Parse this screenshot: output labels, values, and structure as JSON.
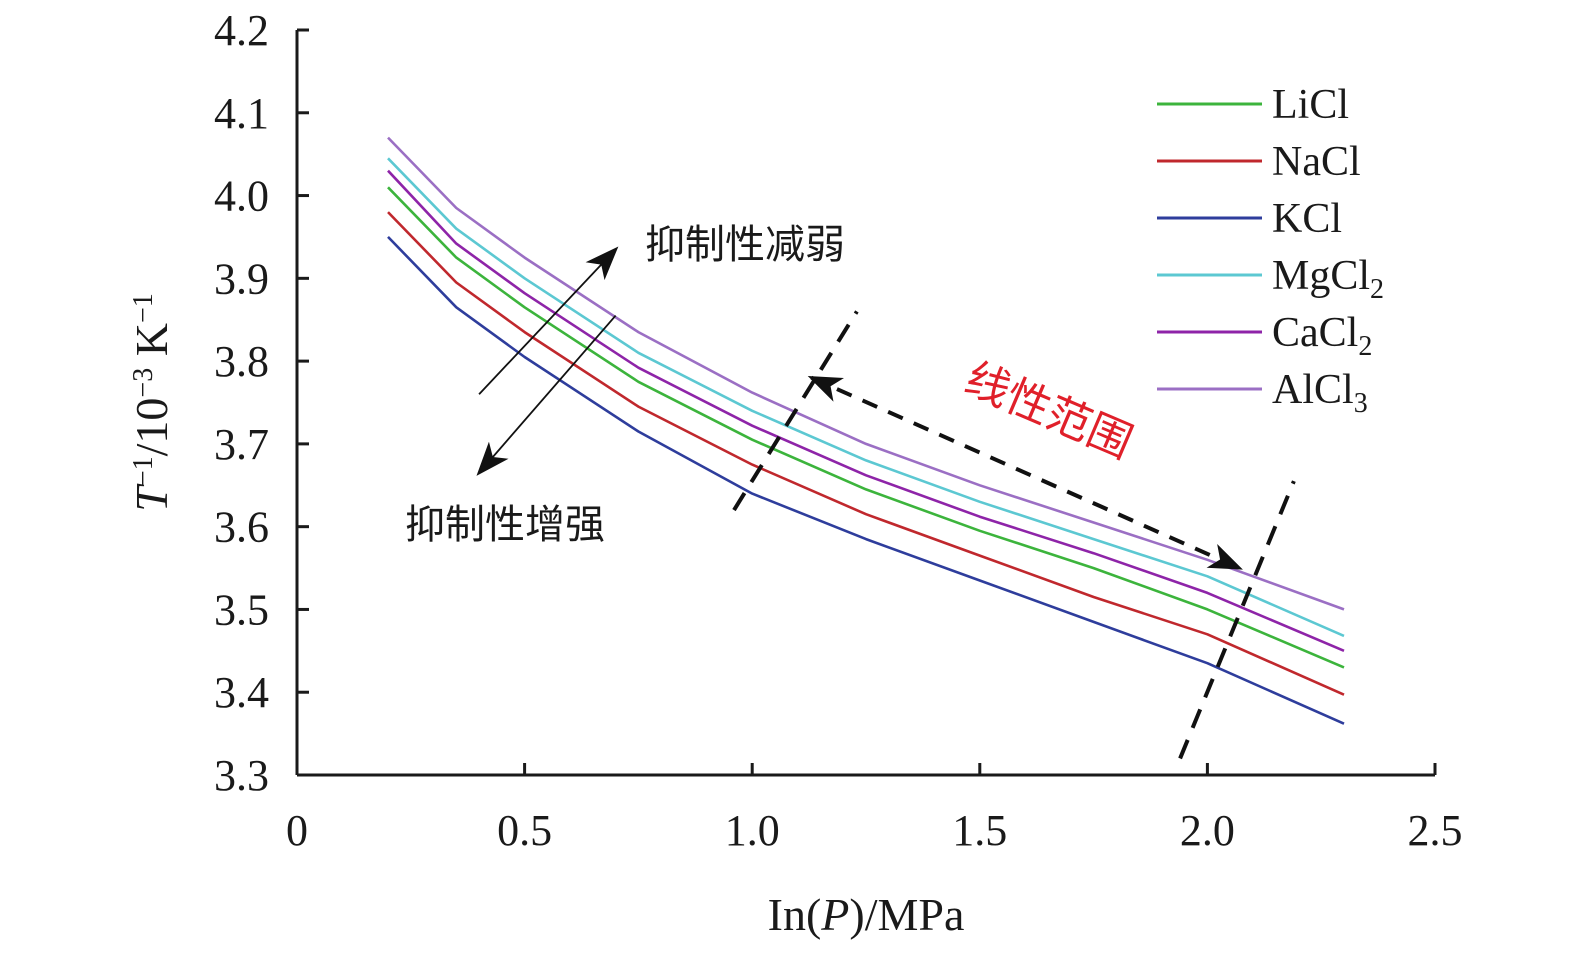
{
  "chart_data": {
    "type": "line",
    "xlabel": {
      "main": "In(",
      "italic": "P",
      "rest": ")/MPa"
    },
    "ylabel": {
      "italic": "T",
      "sup1": "−1",
      "mid": "/10",
      "sup2": "−3",
      "unit": " K",
      "sup3": "−1"
    },
    "xlim": [
      0,
      2.5
    ],
    "ylim": [
      3.3,
      4.2
    ],
    "x_ticks": [
      0,
      0.5,
      1.0,
      1.5,
      2.0,
      2.5
    ],
    "x_tick_labels": [
      "0",
      "0.5",
      "1.0",
      "1.5",
      "2.0",
      "2.5"
    ],
    "y_ticks": [
      3.3,
      3.4,
      3.5,
      3.6,
      3.7,
      3.8,
      3.9,
      4.0,
      4.1,
      4.2
    ],
    "y_tick_labels": [
      "3.3",
      "3.4",
      "3.5",
      "3.6",
      "3.7",
      "3.8",
      "3.9",
      "4.0",
      "4.1",
      "4.2"
    ],
    "grid": false,
    "legend_position": "top-right",
    "x": [
      0.2,
      0.35,
      0.5,
      0.75,
      1.0,
      1.25,
      1.5,
      1.75,
      2.0,
      2.3
    ],
    "series": [
      {
        "name": "LiCl",
        "label_main": "LiCl",
        "label_sub": "",
        "color": "#3cb43c",
        "values": [
          4.01,
          3.925,
          3.865,
          3.775,
          3.705,
          3.645,
          3.595,
          3.55,
          3.5,
          3.43
        ]
      },
      {
        "name": "NaCl",
        "label_main": "NaCl",
        "label_sub": "",
        "color": "#c0282d",
        "values": [
          3.98,
          3.895,
          3.835,
          3.745,
          3.675,
          3.615,
          3.565,
          3.515,
          3.47,
          3.397
        ]
      },
      {
        "name": "KCl",
        "label_main": "KCl",
        "label_sub": "",
        "color": "#2e3d9c",
        "values": [
          3.95,
          3.865,
          3.805,
          3.715,
          3.64,
          3.585,
          3.535,
          3.485,
          3.435,
          3.362
        ]
      },
      {
        "name": "MgCl2",
        "label_main": "MgCl",
        "label_sub": "2",
        "color": "#5cc8d2",
        "values": [
          4.045,
          3.96,
          3.9,
          3.81,
          3.74,
          3.68,
          3.63,
          3.585,
          3.54,
          3.468
        ]
      },
      {
        "name": "CaCl2",
        "label_main": "CaCl",
        "label_sub": "2",
        "color": "#8e24a8",
        "values": [
          4.03,
          3.942,
          3.882,
          3.792,
          3.722,
          3.662,
          3.612,
          3.568,
          3.52,
          3.45
        ]
      },
      {
        "name": "AlCl3",
        "label_main": "AlCl",
        "label_sub": "3",
        "color": "#9b6fc4",
        "values": [
          4.07,
          3.985,
          3.925,
          3.835,
          3.762,
          3.7,
          3.65,
          3.605,
          3.56,
          3.5
        ]
      }
    ],
    "annotations": {
      "weaken": {
        "text": "抑制性减弱",
        "arrow_from": [
          0.4,
          3.76
        ],
        "arrow_to": [
          0.7,
          3.935
        ]
      },
      "strengthen": {
        "text": "抑制性增强",
        "arrow_from": [
          0.7,
          3.855
        ],
        "arrow_to": [
          0.4,
          3.665
        ]
      },
      "linear_range": {
        "text": "线性范围",
        "color": "#e0202a",
        "arrow_from": [
          1.13,
          3.78
        ],
        "arrow_to": [
          2.07,
          3.55
        ]
      },
      "boundary_lines": [
        {
          "from": [
            0.96,
            3.62
          ],
          "to": [
            1.23,
            3.86
          ]
        },
        {
          "from": [
            1.94,
            3.32
          ],
          "to": [
            2.19,
            3.655
          ]
        }
      ]
    }
  }
}
